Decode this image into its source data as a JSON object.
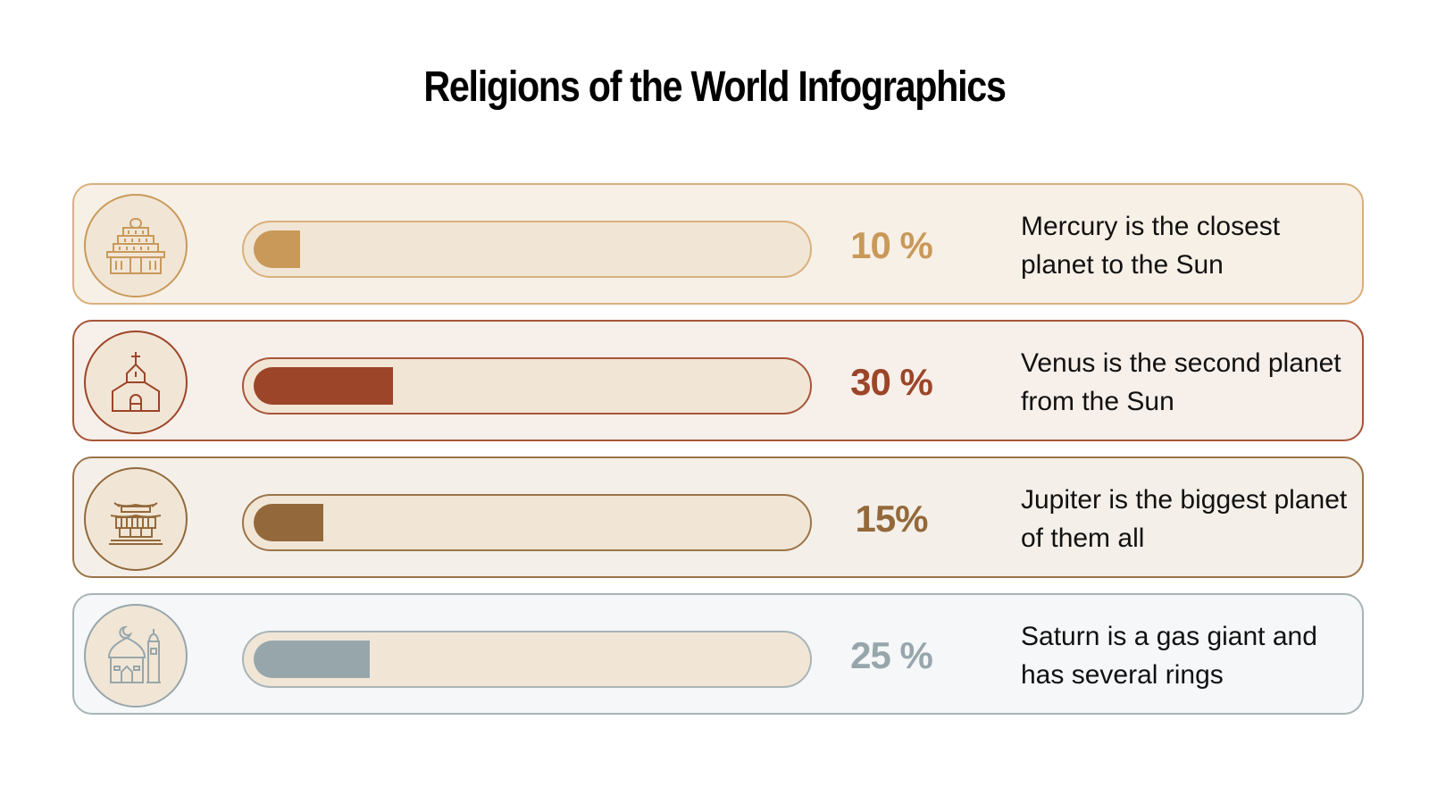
{
  "title": "Religions of the World Infographics",
  "rows": [
    {
      "icon": "hindu-temple-icon",
      "percent_label": "10 %",
      "value": 10,
      "description": "Mercury is the closest planet to the Sun",
      "colors": {
        "accent": "#c9995a",
        "border": "#d9b07c",
        "row_bg": "#f7f0e6",
        "circle_stroke": "#c9995a"
      }
    },
    {
      "icon": "church-icon",
      "percent_label": "30 %",
      "value": 30,
      "description": "Venus is the second planet from the Sun",
      "colors": {
        "accent": "#9c4528",
        "border": "#a8553a",
        "row_bg": "#f7efea",
        "circle_stroke": "#9c4528"
      }
    },
    {
      "icon": "pagoda-temple-icon",
      "percent_label": "15%",
      "value": 15,
      "description": "Jupiter is the biggest planet of them all",
      "colors": {
        "accent": "#93693b",
        "border": "#9c7449",
        "row_bg": "#f4f0e9",
        "circle_stroke": "#93693b"
      }
    },
    {
      "icon": "mosque-icon",
      "percent_label": "25 %",
      "value": 25,
      "description": "Saturn is a gas giant and has several rings",
      "colors": {
        "accent": "#97a6ab",
        "border": "#a8b4b8",
        "row_bg": "#f5f7f8",
        "circle_stroke": "#97a6ab"
      }
    }
  ],
  "chart_data": {
    "type": "bar",
    "orientation": "horizontal",
    "title": "Religions of the World Infographics",
    "categories": [
      "Mercury is the closest planet to the Sun",
      "Venus is the second planet from the Sun",
      "Jupiter is the biggest planet of them all",
      "Saturn is a gas giant and has several rings"
    ],
    "values": [
      10,
      30,
      15,
      25
    ],
    "value_labels": [
      "10 %",
      "30 %",
      "15%",
      "25 %"
    ],
    "colors": [
      "#c9995a",
      "#9c4528",
      "#93693b",
      "#97a6ab"
    ],
    "xlim": [
      0,
      100
    ],
    "xlabel": "",
    "ylabel": "",
    "grid": false,
    "legend": "none"
  }
}
